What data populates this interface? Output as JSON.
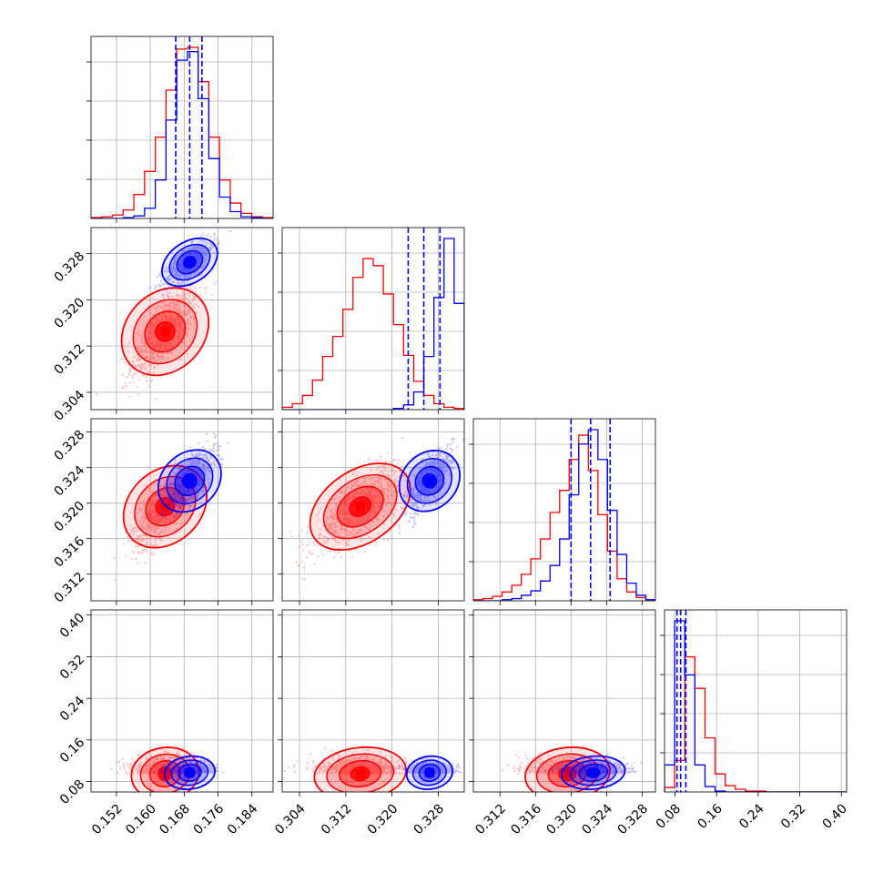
{
  "chart_data": {
    "type": "corner",
    "grid": true,
    "parameters": [
      {
        "axis": 0,
        "range": [
          0.146,
          0.189
        ],
        "ticks": [
          "0.152",
          "0.160",
          "0.168",
          "0.176",
          "0.184"
        ],
        "tick_values": [
          0.152,
          0.16,
          0.168,
          0.176,
          0.184
        ]
      },
      {
        "axis": 1,
        "range": [
          0.301,
          0.3325
        ],
        "ticks": [
          "0.304",
          "0.312",
          "0.320",
          "0.328"
        ],
        "tick_values": [
          0.304,
          0.312,
          0.32,
          0.328
        ]
      },
      {
        "axis": 2,
        "range": [
          0.309,
          0.3295
        ],
        "ticks": [
          "0.312",
          "0.316",
          "0.320",
          "0.324",
          "0.328"
        ],
        "tick_values": [
          0.312,
          0.316,
          0.32,
          0.324,
          0.328
        ]
      },
      {
        "axis": 3,
        "range": [
          0.06,
          0.41
        ],
        "ticks": [
          "0.08",
          "0.16",
          "0.24",
          "0.32",
          "0.40"
        ],
        "tick_values": [
          0.08,
          0.16,
          0.24,
          0.32,
          0.4
        ]
      }
    ],
    "series": [
      {
        "color": "#ff0000",
        "means": [
          0.1635,
          0.3145,
          0.3196,
          0.095
        ],
        "stds": [
          0.004,
          0.004,
          0.0024,
          0.02
        ],
        "marginals": [
          [
            1,
            2,
            4,
            10,
            28,
            55,
            95,
            150,
            198,
            200,
            160,
            95,
            45,
            18,
            6,
            2,
            1
          ],
          [
            2,
            5,
            12,
            25,
            45,
            62,
            85,
            112,
            128,
            122,
            98,
            72,
            46,
            24,
            12,
            5,
            2,
            1
          ],
          [
            1,
            2,
            4,
            8,
            14,
            24,
            38,
            56,
            80,
            100,
            128,
            150,
            118,
            78,
            45,
            20,
            8,
            3,
            1
          ],
          [
            5,
            35,
            150,
            115,
            60,
            20,
            7,
            3,
            1,
            1,
            0,
            0,
            0,
            0,
            0,
            0,
            0,
            0
          ]
        ],
        "quantiles": [],
        "contour_centers": [
          [
            0.1635,
            0.3145
          ],
          [
            0.1635,
            0.3196
          ],
          [
            0.3145,
            0.3196
          ],
          [
            0.1635,
            0.095
          ],
          [
            0.3145,
            0.095
          ],
          [
            0.3196,
            0.095
          ]
        ]
      },
      {
        "color": "#0000ff",
        "means": [
          0.1693,
          0.3265,
          0.3225,
          0.097
        ],
        "stds": [
          0.003,
          0.002,
          0.0018,
          0.012
        ],
        "marginals": [
          [
            0,
            0,
            0,
            1,
            3,
            12,
            45,
            115,
            185,
            195,
            140,
            70,
            25,
            8,
            2,
            1,
            0
          ],
          [
            0,
            0,
            0,
            0,
            0,
            0,
            0,
            0,
            0,
            0,
            0,
            1,
            4,
            15,
            45,
            95,
            145,
            90
          ],
          [
            0,
            0,
            0,
            1,
            2,
            5,
            9,
            18,
            32,
            56,
            96,
            142,
            155,
            128,
            82,
            42,
            16,
            5,
            1
          ],
          [
            30,
            190,
            130,
            30,
            6,
            1,
            0,
            0,
            0,
            0,
            0,
            0,
            0,
            0,
            0,
            0,
            0,
            0
          ]
        ],
        "quantiles": [
          [
            0.166,
            0.1693,
            0.1722
          ],
          [
            0.3228,
            0.3255,
            0.3283
          ],
          [
            0.32,
            0.3222,
            0.3244
          ],
          [
            0.084,
            0.091,
            0.101
          ]
        ],
        "contour_centers": [
          [
            0.1693,
            0.3265
          ],
          [
            0.1693,
            0.3225
          ],
          [
            0.3265,
            0.3225
          ],
          [
            0.1693,
            0.097
          ],
          [
            0.3265,
            0.097
          ],
          [
            0.3225,
            0.097
          ]
        ]
      }
    ],
    "bins": [
      [
        0.146,
        0.189,
        17
      ],
      [
        0.301,
        0.3325,
        18
      ],
      [
        0.309,
        0.3295,
        19
      ],
      [
        0.06,
        0.41,
        18
      ]
    ]
  }
}
